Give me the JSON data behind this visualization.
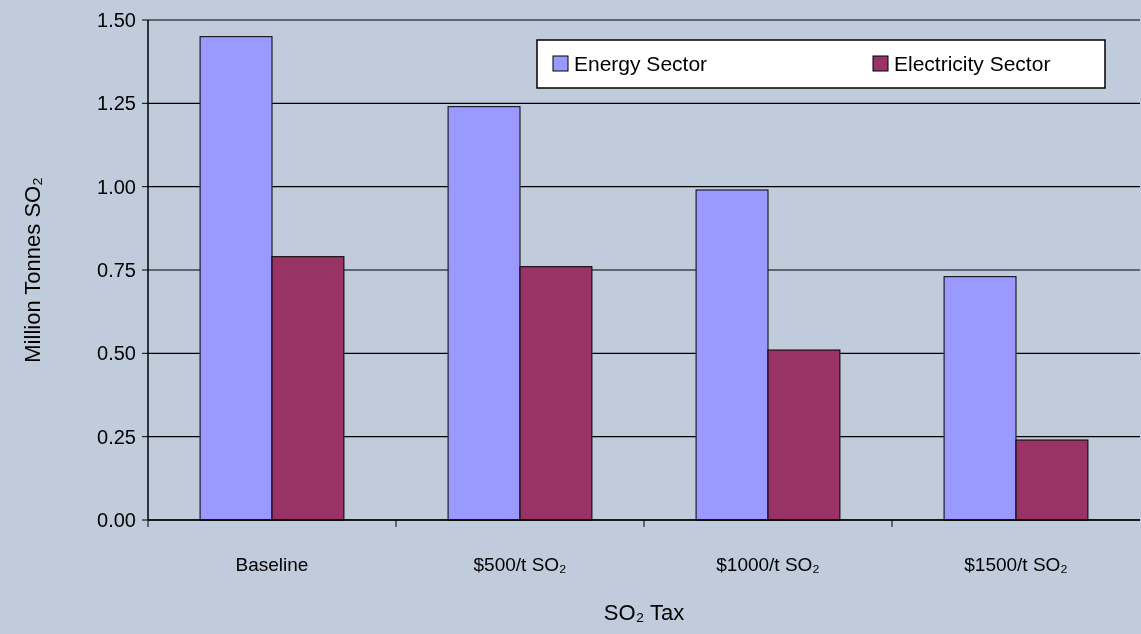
{
  "chart_data": {
    "type": "bar",
    "xlabel": "SO₂ Tax",
    "ylabel": "Million Tonnes SO₂",
    "categories": [
      "Baseline",
      "$500/t SO₂",
      "$1000/t SO₂",
      "$1500/t SO₂"
    ],
    "series": [
      {
        "name": "Energy Sector",
        "color": "#9999ff",
        "values": [
          1.45,
          1.24,
          0.99,
          0.73
        ]
      },
      {
        "name": "Electricity Sector",
        "color": "#993366",
        "values": [
          0.79,
          0.76,
          0.51,
          0.24
        ]
      }
    ],
    "ylim": [
      0,
      1.5
    ],
    "yticks": [
      {
        "value": 0,
        "label": "0.00"
      },
      {
        "value": 0.25,
        "label": "0.25"
      },
      {
        "value": 0.5,
        "label": "0.50"
      },
      {
        "value": 0.75,
        "label": "0.75"
      },
      {
        "value": 1,
        "label": "1.00"
      },
      {
        "value": 1.25,
        "label": "1.25"
      },
      {
        "value": 1.5,
        "label": "1.50"
      }
    ],
    "grid": "y",
    "legend": "top right"
  }
}
